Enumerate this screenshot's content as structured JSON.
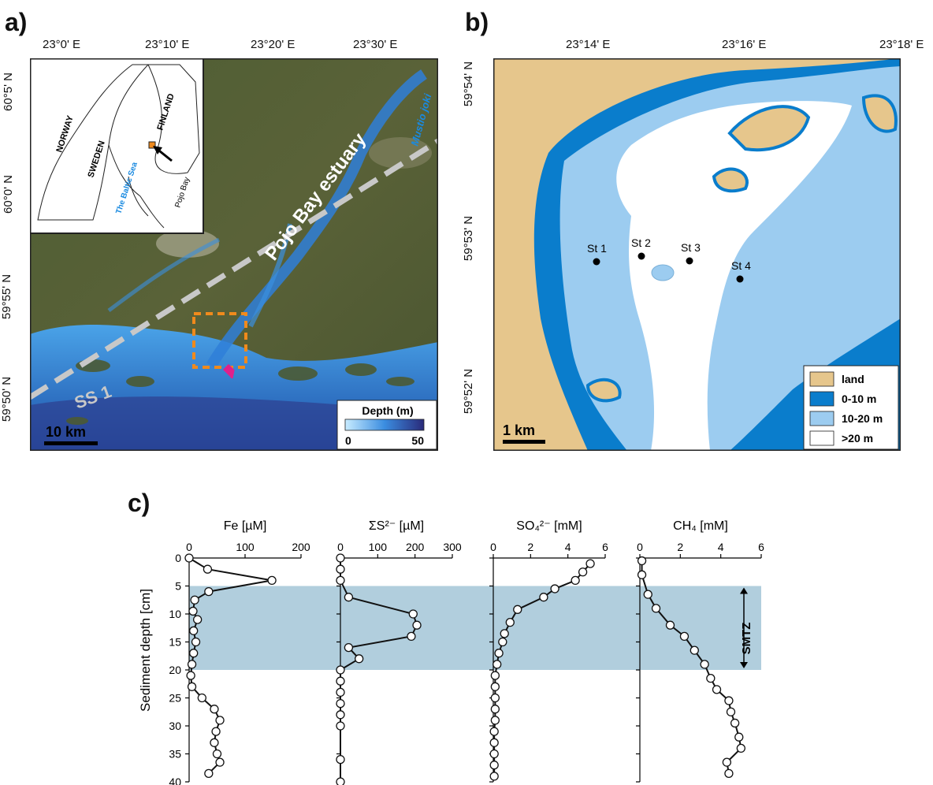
{
  "panel_a": {
    "label": "a)",
    "top_ticks": [
      "23°0' E",
      "23°10' E",
      "23°20' E",
      "23°30' E"
    ],
    "left_ticks": [
      "60°5' N",
      "60°0' N",
      "59°55' N",
      "59°50' N"
    ],
    "estuary_label": "Pojo Bay estuary",
    "profile_label": "SS 1",
    "river_label": "Mustio joki",
    "scale_label": "10 km",
    "depth_legend": {
      "title": "Depth (m)",
      "min": "0",
      "max": "50"
    },
    "inset": {
      "countries": [
        "NORWAY",
        "SWEDEN",
        "FINLAND"
      ],
      "sea": "The Baltic Sea",
      "bay": "Pojo Bay"
    }
  },
  "panel_b": {
    "label": "b)",
    "top_ticks": [
      "23°14' E",
      "23°16' E",
      "23°18' E"
    ],
    "left_ticks": [
      "59°54' N",
      "59°53' N",
      "59°52' N"
    ],
    "stations": [
      "St 1",
      "St 2",
      "St 3",
      "St 4"
    ],
    "scale_label": "1 km",
    "legend": [
      {
        "label": "land",
        "color": "#e6c68c"
      },
      {
        "label": "0-10 m",
        "color": "#0a7dcc"
      },
      {
        "label": "10-20 m",
        "color": "#9cccf0"
      },
      {
        "label": ">20 m",
        "color": "#ffffff"
      }
    ]
  },
  "panel_c": {
    "label": "c)",
    "y_label": "Sediment depth [cm]",
    "smtz_label": "SMTZ",
    "smtz_range": [
      5,
      20
    ],
    "depth_ticks": [
      0,
      5,
      10,
      15,
      20,
      25,
      30,
      35,
      40
    ],
    "profiles": [
      {
        "name": "Fe [µM]",
        "xticks": [
          0,
          100,
          200
        ],
        "xlim": [
          0,
          200
        ],
        "points": [
          [
            0,
            0
          ],
          [
            33,
            2
          ],
          [
            148,
            4
          ],
          [
            35,
            6
          ],
          [
            10,
            7.5
          ],
          [
            7,
            9.5
          ],
          [
            15,
            11
          ],
          [
            8,
            13
          ],
          [
            12,
            15
          ],
          [
            8,
            17
          ],
          [
            5,
            19
          ],
          [
            3,
            21
          ],
          [
            5,
            23
          ],
          [
            23,
            25
          ],
          [
            45,
            27
          ],
          [
            55,
            29
          ],
          [
            48,
            31
          ],
          [
            45,
            33
          ],
          [
            50,
            35
          ],
          [
            55,
            36.5
          ],
          [
            35,
            38.5
          ]
        ]
      },
      {
        "name": "ΣS²⁻ [µM]",
        "xticks": [
          0,
          100,
          200,
          300
        ],
        "xlim": [
          0,
          300
        ],
        "points": [
          [
            0,
            0
          ],
          [
            0,
            2
          ],
          [
            0,
            4
          ],
          [
            22,
            7
          ],
          [
            195,
            10
          ],
          [
            205,
            12
          ],
          [
            190,
            14
          ],
          [
            22,
            16
          ],
          [
            50,
            18
          ],
          [
            0,
            20
          ],
          [
            0,
            22
          ],
          [
            0,
            24
          ],
          [
            0,
            26
          ],
          [
            0,
            28
          ],
          [
            0,
            30
          ],
          [
            0,
            36
          ],
          [
            0,
            40
          ]
        ]
      },
      {
        "name": "SO₄²⁻ [mM]",
        "xticks": [
          0,
          2,
          4,
          6
        ],
        "xlim": [
          0,
          6
        ],
        "points": [
          [
            5.2,
            1
          ],
          [
            4.8,
            2.5
          ],
          [
            4.4,
            4
          ],
          [
            3.3,
            5.5
          ],
          [
            2.7,
            7
          ],
          [
            1.3,
            9.2
          ],
          [
            0.9,
            11.5
          ],
          [
            0.6,
            13.5
          ],
          [
            0.5,
            15
          ],
          [
            0.3,
            17
          ],
          [
            0.2,
            19
          ],
          [
            0.1,
            21
          ],
          [
            0.1,
            23
          ],
          [
            0.1,
            25
          ],
          [
            0.1,
            27
          ],
          [
            0.1,
            29
          ],
          [
            0.05,
            31
          ],
          [
            0.05,
            33
          ],
          [
            0.05,
            35
          ],
          [
            0.05,
            37
          ],
          [
            0.05,
            39
          ]
        ]
      },
      {
        "name": "CH₄ [mM]",
        "xticks": [
          0,
          2,
          4,
          6
        ],
        "xlim": [
          0,
          6
        ],
        "points": [
          [
            0.1,
            0.5
          ],
          [
            0.1,
            3
          ],
          [
            0.4,
            6.5
          ],
          [
            0.8,
            9
          ],
          [
            1.5,
            12
          ],
          [
            2.2,
            14
          ],
          [
            2.7,
            16.5
          ],
          [
            3.2,
            19
          ],
          [
            3.5,
            21.5
          ],
          [
            3.8,
            23.5
          ],
          [
            4.4,
            25.5
          ],
          [
            4.5,
            27.5
          ],
          [
            4.7,
            29.5
          ],
          [
            4.9,
            32
          ],
          [
            5.0,
            34
          ],
          [
            4.3,
            36.5
          ],
          [
            4.4,
            38.5
          ]
        ]
      }
    ]
  }
}
